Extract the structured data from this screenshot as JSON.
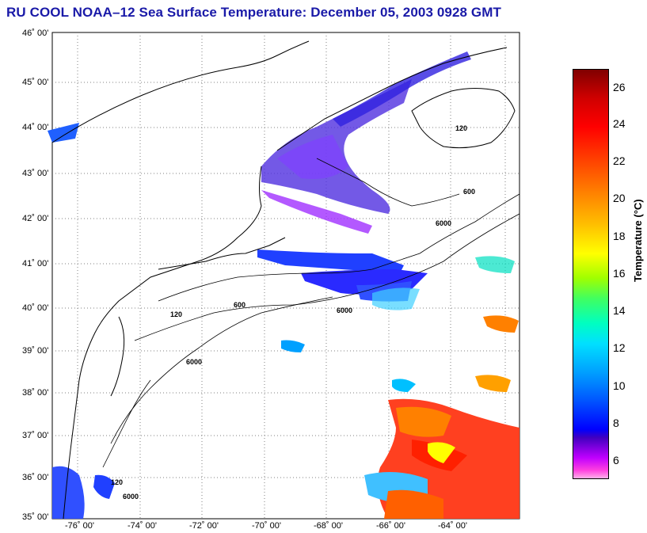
{
  "title": "RU COOL  NOAA–12  Sea Surface Temperature:  December 05, 2003 0928 GMT",
  "map": {
    "lat_labels": [
      "46˚ 00'",
      "45˚ 00'",
      "44˚ 00'",
      "43˚ 00'",
      "42˚ 00'",
      "41˚ 00'",
      "40˚ 00'",
      "39˚ 00'",
      "38˚ 00'",
      "37˚ 00'",
      "36˚ 00'",
      "35˚ 00'"
    ],
    "lon_labels": [
      "-76˚ 00'",
      "-74˚ 00'",
      "-72˚ 00'",
      "-70˚ 00'",
      "-68˚ 00'",
      "-66˚ 00'",
      "-64˚ 00'"
    ],
    "contour_labels": [
      "120",
      "600",
      "6000"
    ]
  },
  "colorbar": {
    "ticks": [
      "26",
      "24",
      "22",
      "20",
      "18",
      "16",
      "14",
      "12",
      "10",
      "8",
      "6"
    ],
    "label": "Temperature (°C)",
    "range": [
      5,
      27
    ]
  },
  "colors": {
    "title": "#1a1aa8",
    "land_outline": "#000000",
    "grid": "#808080"
  }
}
